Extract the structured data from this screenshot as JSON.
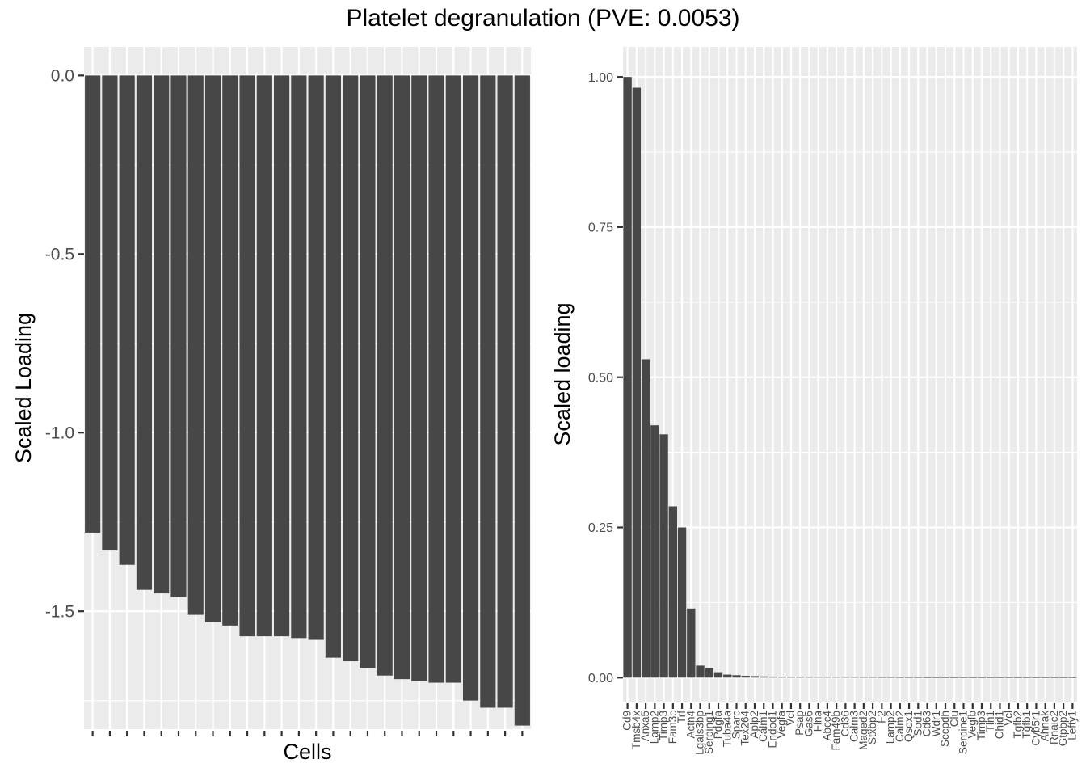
{
  "figure": {
    "title": "Platelet degranulation (PVE: 0.0053)"
  },
  "chart_data": [
    {
      "type": "bar",
      "panel": "left",
      "xlabel": "Cells",
      "ylabel": "Scaled Loading",
      "ylim": [
        -1.83,
        0.08
      ],
      "yticks": [
        0.0,
        -0.5,
        -1.0,
        -1.5
      ],
      "ytick_labels": [
        "0.0",
        "-0.5",
        "-1.0",
        "-1.5"
      ],
      "show_x_tick_labels": false,
      "grid": true,
      "categories": [
        "",
        "",
        "",
        "",
        "",
        "",
        "",
        "",
        "",
        "",
        "",
        "",
        "",
        "",
        "",
        "",
        "",
        "",
        "",
        "",
        "",
        "",
        "",
        "",
        "",
        ""
      ],
      "values": [
        -1.28,
        -1.33,
        -1.37,
        -1.44,
        -1.45,
        -1.46,
        -1.51,
        -1.53,
        -1.54,
        -1.57,
        -1.57,
        -1.57,
        -1.575,
        -1.58,
        -1.63,
        -1.64,
        -1.66,
        -1.68,
        -1.69,
        -1.695,
        -1.7,
        -1.7,
        -1.75,
        -1.77,
        -1.77,
        -1.82
      ]
    },
    {
      "type": "bar",
      "panel": "right",
      "xlabel": "",
      "ylabel": "Scaled loading",
      "ylim": [
        -0.04,
        1.05
      ],
      "yticks": [
        0.0,
        0.25,
        0.5,
        0.75,
        1.0
      ],
      "ytick_labels": [
        "0.00",
        "0.25",
        "0.50",
        "0.75",
        "1.00"
      ],
      "show_x_tick_labels": true,
      "grid": true,
      "categories": [
        "Cd9",
        "Tmsb4x",
        "Anxa5",
        "Lamp2",
        "Timp3",
        "Fam3c",
        "Trf",
        "Actn4",
        "Lgals3bp",
        "Serping1",
        "Pdgfa",
        "Tuba4a",
        "Sparc",
        "Tex264",
        "Aplp2",
        "Calm1",
        "Endod1",
        "Vegfa",
        "Vcl",
        "Psap",
        "Gas6",
        "Flna",
        "Abcc4",
        "Fam49b",
        "Cd36",
        "Calm3",
        "Maged2",
        "Stxbp2",
        "F2",
        "Lamp2",
        "Calm2",
        "Qsox1",
        "Sod1",
        "Cd63",
        "Wdr1",
        "Sccpdh",
        "Clu",
        "Serpine1",
        "Vegfb",
        "Timp3",
        "Tln1",
        "Chid1",
        "Vcl",
        "Tgfb2",
        "Tgfb1",
        "Cyb5r1",
        "Ahnak",
        "Rnaic2",
        "Gtpbp2",
        "Lefty1"
      ],
      "values": [
        1.0,
        0.982,
        0.53,
        0.42,
        0.405,
        0.285,
        0.25,
        0.115,
        0.02,
        0.016,
        0.009,
        0.005,
        0.004,
        0.003,
        0.0025,
        0.002,
        0.0018,
        0.0015,
        0.0013,
        0.0012,
        0.001,
        0.001,
        0.0009,
        0.0009,
        0.0008,
        0.0008,
        0.0007,
        0.0007,
        0.0006,
        0.0006,
        0.0005,
        0.0005,
        0.0005,
        0.0004,
        0.0004,
        0.0004,
        0.0003,
        0.0003,
        0.0003,
        0.0003,
        0.0002,
        0.0002,
        0.0002,
        0.0002,
        0.0002,
        0.0001,
        0.0001,
        0.0001,
        0.0001,
        0.0001
      ]
    }
  ]
}
